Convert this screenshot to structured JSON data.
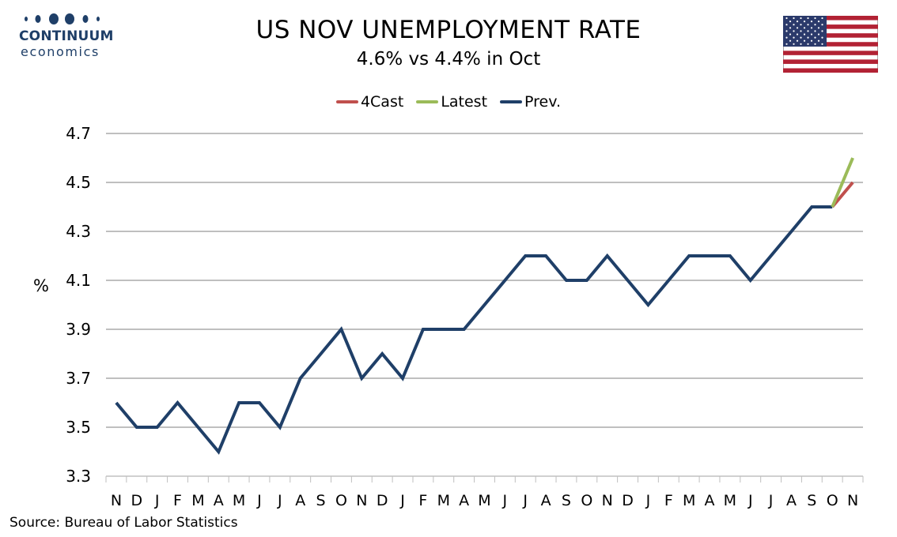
{
  "logo": {
    "name": "CONTINUUM",
    "sub": "economics",
    "color": "#1f3f68"
  },
  "header": {
    "title": "US NOV UNEMPLOYMENT RATE",
    "subtitle": "4.6% vs 4.4% in Oct"
  },
  "flag": {
    "icon": "us-flag-icon"
  },
  "footer": {
    "source": "Source: Bureau of Labor Statistics"
  },
  "chart_data": {
    "type": "line",
    "title": "US NOV UNEMPLOYMENT RATE",
    "subtitle": "4.6% vs 4.4% in Oct",
    "ylabel": "%",
    "xlabel": "",
    "ylim": [
      3.3,
      4.7
    ],
    "yticks": [
      "4.7",
      "4.5",
      "4.3",
      "4.1",
      "3.9",
      "3.7",
      "3.5",
      "3.3"
    ],
    "grid": true,
    "legend_position": "top-center",
    "categories": [
      "N",
      "D",
      "J",
      "F",
      "M",
      "A",
      "M",
      "J",
      "J",
      "A",
      "S",
      "O",
      "N",
      "D",
      "J",
      "F",
      "M",
      "A",
      "M",
      "J",
      "J",
      "A",
      "S",
      "O",
      "N",
      "D",
      "J",
      "F",
      "M",
      "A",
      "M",
      "J",
      "J",
      "A",
      "S",
      "O",
      "N"
    ],
    "series": [
      {
        "name": "4Cast",
        "color": "#c0504d",
        "values": [
          null,
          null,
          null,
          null,
          null,
          null,
          null,
          null,
          null,
          null,
          null,
          null,
          null,
          null,
          null,
          null,
          null,
          null,
          null,
          null,
          null,
          null,
          null,
          null,
          null,
          null,
          null,
          null,
          null,
          null,
          null,
          null,
          null,
          null,
          null,
          4.4,
          4.5
        ]
      },
      {
        "name": "Latest",
        "color": "#9bbb59",
        "values": [
          null,
          null,
          null,
          null,
          null,
          null,
          null,
          null,
          null,
          null,
          null,
          null,
          null,
          null,
          null,
          null,
          null,
          null,
          null,
          null,
          null,
          null,
          null,
          null,
          null,
          null,
          null,
          null,
          null,
          null,
          null,
          null,
          null,
          null,
          null,
          4.4,
          4.6
        ]
      },
      {
        "name": "Prev.",
        "color": "#1f3f68",
        "values": [
          3.6,
          3.5,
          3.5,
          3.6,
          3.5,
          3.4,
          3.6,
          3.6,
          3.5,
          3.7,
          3.8,
          3.9,
          3.7,
          3.8,
          3.7,
          3.9,
          3.9,
          3.9,
          4.0,
          4.1,
          4.2,
          4.2,
          4.1,
          4.1,
          4.2,
          4.1,
          4.0,
          4.1,
          4.2,
          4.2,
          4.2,
          4.1,
          4.2,
          4.3,
          4.4,
          4.4,
          null
        ]
      }
    ]
  }
}
